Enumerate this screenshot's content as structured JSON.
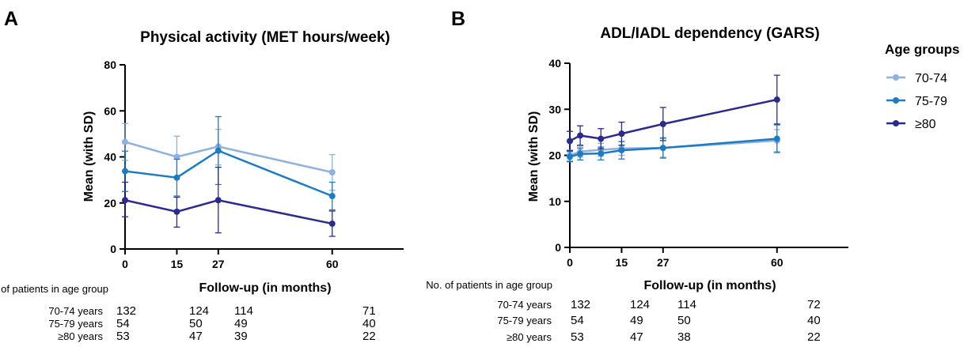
{
  "legend": {
    "title": "Age groups",
    "items": [
      {
        "label": "70-74",
        "color": "#8fb1de"
      },
      {
        "label": "75-79",
        "color": "#1f7bbf"
      },
      {
        "label": "≥80",
        "color": "#2b2b8c"
      }
    ]
  },
  "chart_data": [
    {
      "panel": "A",
      "type": "line",
      "title": "Physical activity (MET hours/week)",
      "xlabel": "Follow-up (in months)",
      "ylabel": "Mean (with SD)",
      "xlim": [
        0,
        80
      ],
      "ylim": [
        0,
        80
      ],
      "xticks": [
        0,
        15,
        27,
        60
      ],
      "yticks": [
        0,
        20,
        40,
        60,
        80
      ],
      "grid": false,
      "legend_position": "right",
      "series": [
        {
          "name": "70-74",
          "color": "#8fb1de",
          "points": [
            {
              "x": 0,
              "y": 46.5,
              "lo": 38.5,
              "hi": 54.5
            },
            {
              "x": 15,
              "y": 40,
              "lo": 31,
              "hi": 49
            },
            {
              "x": 27,
              "y": 44.5,
              "lo": 36.5,
              "hi": 52
            },
            {
              "x": 60,
              "y": 33.3,
              "lo": 25.5,
              "hi": 41
            }
          ]
        },
        {
          "name": "75-79",
          "color": "#1f7bbf",
          "points": [
            {
              "x": 0,
              "y": 33.8,
              "lo": 25,
              "hi": 42.5
            },
            {
              "x": 15,
              "y": 31,
              "lo": 23,
              "hi": 39
            },
            {
              "x": 27,
              "y": 42.7,
              "lo": 28,
              "hi": 57.5
            },
            {
              "x": 60,
              "y": 23,
              "lo": 17,
              "hi": 29
            }
          ]
        },
        {
          "name": "≥80",
          "color": "#2b2b8c",
          "points": [
            {
              "x": 0,
              "y": 21.2,
              "lo": 14,
              "hi": 29
            },
            {
              "x": 15,
              "y": 16.2,
              "lo": 9.5,
              "hi": 22.5
            },
            {
              "x": 27,
              "y": 21.2,
              "lo": 7,
              "hi": 35.5
            },
            {
              "x": 60,
              "y": 11,
              "lo": 5.5,
              "hi": 16.5
            }
          ]
        }
      ],
      "patients": {
        "header": "No. of patients in age group",
        "rows": [
          {
            "label": "70-74 years",
            "counts": [
              "132",
              "124",
              "114",
              "71"
            ]
          },
          {
            "label": "75-79 years",
            "counts": [
              "54",
              "50",
              "49",
              "40"
            ]
          },
          {
            "label": "≥80 years",
            "counts": [
              "53",
              "47",
              "39",
              "22"
            ]
          }
        ]
      }
    },
    {
      "panel": "B",
      "type": "line",
      "title": "ADL/IADL dependency (GARS)",
      "xlabel": "Follow-up (in months)",
      "ylabel": "Mean (with SD)",
      "xlim": [
        0,
        80
      ],
      "ylim": [
        0,
        40
      ],
      "xticks": [
        0,
        15,
        27,
        60
      ],
      "yticks": [
        0,
        10,
        20,
        30,
        40
      ],
      "grid": false,
      "series": [
        {
          "name": "70-74",
          "color": "#8fb1de",
          "points": [
            {
              "x": 0,
              "y": 20,
              "lo": 18.8,
              "hi": 21.2
            },
            {
              "x": 3,
              "y": 20.8,
              "lo": 19.6,
              "hi": 22
            },
            {
              "x": 9,
              "y": 21.2,
              "lo": 19.8,
              "hi": 22.6
            },
            {
              "x": 15,
              "y": 21.5,
              "lo": 20,
              "hi": 23
            },
            {
              "x": 27,
              "y": 21.6,
              "lo": 19.6,
              "hi": 23.6
            },
            {
              "x": 60,
              "y": 23.2,
              "lo": 20.8,
              "hi": 25.6
            }
          ]
        },
        {
          "name": "75-79",
          "color": "#1f7bbf",
          "points": [
            {
              "x": 0,
              "y": 19.7,
              "lo": 18.6,
              "hi": 20.8
            },
            {
              "x": 3,
              "y": 20.3,
              "lo": 19,
              "hi": 21.6
            },
            {
              "x": 9,
              "y": 20.4,
              "lo": 19,
              "hi": 21.8
            },
            {
              "x": 15,
              "y": 21.1,
              "lo": 19.2,
              "hi": 23
            },
            {
              "x": 27,
              "y": 21.6,
              "lo": 19.4,
              "hi": 23.8
            },
            {
              "x": 60,
              "y": 23.6,
              "lo": 20.6,
              "hi": 26.6
            }
          ]
        },
        {
          "name": "≥80",
          "color": "#2b2b8c",
          "points": [
            {
              "x": 0,
              "y": 23.1,
              "lo": 21,
              "hi": 25.2
            },
            {
              "x": 3,
              "y": 24.3,
              "lo": 22.2,
              "hi": 26.4
            },
            {
              "x": 9,
              "y": 23.6,
              "lo": 21.4,
              "hi": 25.8
            },
            {
              "x": 15,
              "y": 24.7,
              "lo": 22.2,
              "hi": 27.2
            },
            {
              "x": 27,
              "y": 26.8,
              "lo": 23.2,
              "hi": 30.4
            },
            {
              "x": 60,
              "y": 32.1,
              "lo": 26.8,
              "hi": 37.4
            }
          ]
        }
      ],
      "patients": {
        "header": "No. of patients in age group",
        "rows": [
          {
            "label": "70-74 years",
            "counts": [
              "132",
              "124",
              "114",
              "72"
            ]
          },
          {
            "label": "75-79 years",
            "counts": [
              "54",
              "49",
              "50",
              "40"
            ]
          },
          {
            "label": "≥80 years",
            "counts": [
              "53",
              "47",
              "38",
              "22"
            ]
          }
        ]
      }
    }
  ]
}
